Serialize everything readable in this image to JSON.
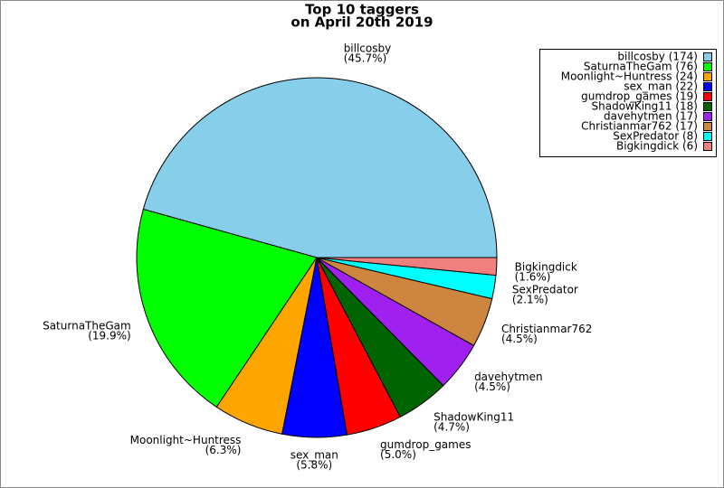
{
  "chart_data": {
    "type": "pie",
    "title": [
      "Top 10 taggers",
      "on April 20th 2019"
    ],
    "categories": [
      "billcosby",
      "SaturnaTheGam",
      "Moonlight~Huntress",
      "sex_man",
      "gumdrop_games",
      "ShadowKing11",
      "davehytmen",
      "Christianmar762",
      "SexPredator",
      "Bigkingdick"
    ],
    "values": [
      174,
      76,
      24,
      22,
      19,
      18,
      17,
      17,
      8,
      6
    ],
    "percentages": [
      45.7,
      19.9,
      6.3,
      5.8,
      5.0,
      4.7,
      4.5,
      4.5,
      2.1,
      1.6
    ],
    "percentage_labels": [
      "(45.7%)",
      "(19.9%)",
      "(6.3%)",
      "(5.8%)",
      "(5.0%)",
      "(4.7%)",
      "(4.5%)",
      "(4.5%)",
      "(2.1%)",
      "(1.6%)"
    ],
    "legend_labels": [
      "billcosby (174)",
      "SaturnaTheGam (76)",
      "Moonlight~Huntress (24)",
      "sex_man (22)",
      "gumdrop_games (19)",
      "ShadowKing11 (18)",
      "davehytmen (17)",
      "Christianmar762 (17)",
      "SexPredator (8)",
      "Bigkingdick (6)"
    ],
    "colors": [
      "#87ceeb",
      "#00ff00",
      "#ffa500",
      "#0000ff",
      "#ff0000",
      "#006400",
      "#a020f0",
      "#cd853f",
      "#00ffff",
      "#f08080"
    ],
    "legend": "upper right"
  }
}
